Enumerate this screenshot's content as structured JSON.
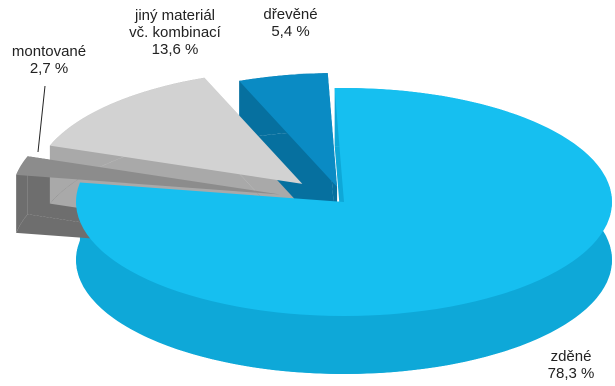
{
  "chart_data": {
    "type": "pie",
    "style": "3d-exploded",
    "legend": "none",
    "slices": [
      {
        "label": "zděné",
        "label_line2": "",
        "value": 78.3,
        "value_text": "78,3 %",
        "color": "#16bff0",
        "side_color": "#0ea8d8"
      },
      {
        "label": "montované",
        "label_line2": "",
        "value": 2.7,
        "value_text": "2,7 %",
        "color": "#8c8c8c",
        "side_color": "#6e6e6e"
      },
      {
        "label": "jiný materiál",
        "label_line2": "vč. kombinací",
        "value": 13.6,
        "value_text": "13,6 %",
        "color": "#d2d2d2",
        "side_color": "#a9a9a9"
      },
      {
        "label": "dřevěné",
        "label_line2": "",
        "value": 5.4,
        "value_text": "5,4 %",
        "color": "#0a8bc4",
        "side_color": "#06709f"
      }
    ]
  }
}
